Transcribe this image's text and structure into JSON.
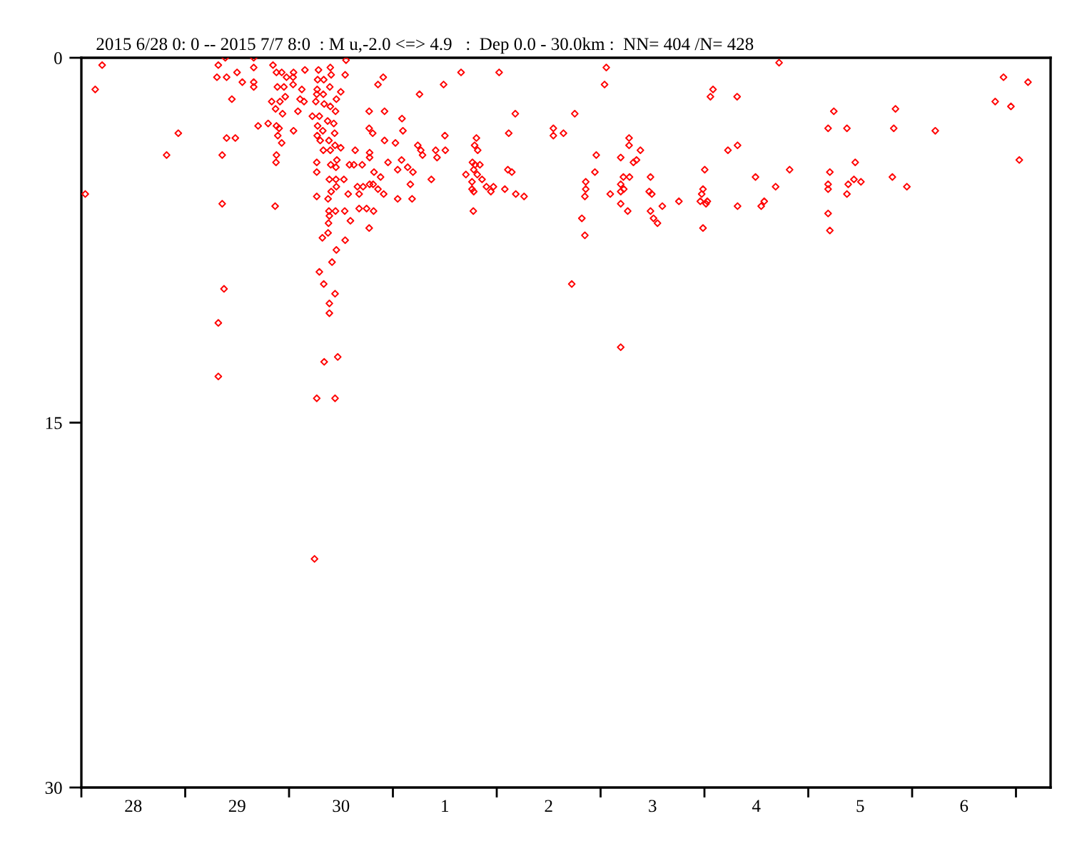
{
  "chart_data": {
    "type": "scatter",
    "title": "2015 6/28 0: 0 -- 2015 7/7 8:0  : M u,-2.0 <=> 4.9   :  Dep 0.0 - 30.0km :  NN= 404 /N= 428",
    "xlim": [
      "2015-06-28T00:00",
      "2015-07-07T08:00"
    ],
    "xticks": [
      {
        "value": "2015-06-28T00:00",
        "label": null
      },
      {
        "value": "2015-06-28T12:00",
        "label": "28"
      },
      {
        "value": "2015-06-29T00:00",
        "label": null
      },
      {
        "value": "2015-06-29T12:00",
        "label": "29"
      },
      {
        "value": "2015-06-30T00:00",
        "label": null
      },
      {
        "value": "2015-06-30T12:00",
        "label": "30"
      },
      {
        "value": "2015-07-01T00:00",
        "label": null
      },
      {
        "value": "2015-07-01T12:00",
        "label": "1"
      },
      {
        "value": "2015-07-02T00:00",
        "label": null
      },
      {
        "value": "2015-07-02T12:00",
        "label": "2"
      },
      {
        "value": "2015-07-03T00:00",
        "label": null
      },
      {
        "value": "2015-07-03T12:00",
        "label": "3"
      },
      {
        "value": "2015-07-04T00:00",
        "label": null
      },
      {
        "value": "2015-07-04T12:00",
        "label": "4"
      },
      {
        "value": "2015-07-05T00:00",
        "label": null
      },
      {
        "value": "2015-07-05T12:00",
        "label": "5"
      },
      {
        "value": "2015-07-06T00:00",
        "label": null
      },
      {
        "value": "2015-07-06T12:00",
        "label": "6"
      },
      {
        "value": "2015-07-07T00:00",
        "label": null
      }
    ],
    "ylim": [
      30,
      0
    ],
    "yticks": [
      0,
      15,
      30
    ],
    "marker": "diamond",
    "series": [
      {
        "color": "#ff0000",
        "x": [
          "2015-06-28T04:48",
          "2015-06-28T03:12",
          "2015-06-28T00:54",
          "2015-06-28T22:24",
          "2015-06-28T19:42",
          "2015-06-29T09:16",
          "2015-06-29T07:39",
          "2015-06-29T07:20",
          "2015-06-29T09:34",
          "2015-06-29T11:59",
          "2015-06-29T15:50",
          "2015-06-29T15:50",
          "2015-06-29T13:12",
          "2015-06-29T15:50",
          "2015-06-29T15:50",
          "2015-06-29T10:47",
          "2015-06-29T09:34",
          "2015-06-29T11:35",
          "2015-06-29T08:33",
          "2015-06-29T08:33",
          "2015-06-29T08:58",
          "2015-06-29T07:39",
          "2015-06-29T07:39",
          "2015-06-29T20:17",
          "2015-06-29T21:05",
          "2015-06-29T22:18",
          "2015-06-30T01:02",
          "2015-06-30T03:40",
          "2015-06-29T23:25",
          "2015-06-30T00:56",
          "2015-06-29T21:18",
          "2015-06-29T22:49",
          "2015-06-30T00:56",
          "2015-06-30T02:57",
          "2015-06-29T19:59",
          "2015-06-29T21:54",
          "2015-06-29T23:07",
          "2015-06-30T02:33",
          "2015-06-30T03:28",
          "2015-06-29T20:53",
          "2015-06-29T22:30",
          "2015-06-30T02:03",
          "2015-06-29T16:51",
          "2015-06-29T19:10",
          "2015-06-29T21:05",
          "2015-06-29T21:42",
          "2015-06-30T01:02",
          "2015-06-29T21:24",
          "2015-06-29T22:18",
          "2015-06-29T21:05",
          "2015-06-29T20:59",
          "2015-06-29T20:47",
          "2015-06-30T06:48",
          "2015-06-30T06:36",
          "2015-06-30T08:01",
          "2015-06-30T09:32",
          "2015-06-30T09:44",
          "2015-06-30T13:10",
          "2015-06-30T12:58",
          "2015-06-30T06:30",
          "2015-06-30T06:24",
          "2015-06-30T07:55",
          "2015-06-30T09:25",
          "2015-06-30T11:57",
          "2015-06-30T10:56",
          "2015-06-30T06:11",
          "2015-06-30T08:07",
          "2015-06-30T09:32",
          "2015-06-30T10:44",
          "2015-06-30T05:23",
          "2015-06-30T07:00",
          "2015-06-30T08:55",
          "2015-06-30T06:36",
          "2015-06-30T10:20",
          "2015-06-30T07:48",
          "2015-06-30T10:32",
          "2015-06-30T06:30",
          "2015-06-30T07:12",
          "2015-06-30T09:13",
          "2015-06-30T10:38",
          "2015-06-30T07:55",
          "2015-06-30T09:32",
          "2015-06-30T11:57",
          "2015-06-30T11:03",
          "2015-06-30T06:24",
          "2015-06-30T06:24",
          "2015-06-30T09:38",
          "2015-06-30T10:50",
          "2015-06-30T10:50",
          "2015-06-30T09:19",
          "2015-06-30T12:40",
          "2015-06-30T10:56",
          "2015-06-30T09:44",
          "2015-06-30T13:40",
          "2015-06-30T06:24",
          "2015-06-30T09:01",
          "2015-06-30T10:44",
          "2015-06-30T09:13",
          "2015-06-30T09:19",
          "2015-06-30T09:07",
          "2015-06-30T09:01",
          "2015-06-30T07:42",
          "2015-06-30T12:58",
          "2015-06-30T10:56",
          "2015-06-30T09:56",
          "2015-06-30T07:00",
          "2015-06-30T08:01",
          "2015-06-30T10:38",
          "2015-06-30T09:19",
          "2015-06-30T09:19",
          "2015-06-30T11:15",
          "2015-06-30T08:07",
          "2015-06-30T06:24",
          "2015-06-30T10:38",
          "2015-06-30T05:53",
          "2015-06-30T15:17",
          "2015-06-30T13:58",
          "2015-06-30T14:59",
          "2015-06-30T16:54",
          "2015-06-30T18:37",
          "2015-06-30T18:37",
          "2015-06-30T18:31",
          "2015-06-30T22:04",
          "2015-06-30T21:46",
          "2015-06-30T20:33",
          "2015-06-30T18:31",
          "2015-06-30T19:20",
          "2015-06-30T22:04",
          "2015-07-01T00:35",
          "2015-06-30T22:52",
          "2015-06-30T21:09",
          "2015-06-30T19:38",
          "2015-06-30T15:48",
          "2015-06-30T17:07",
          "2015-06-30T18:37",
          "2015-06-30T19:26",
          "2015-06-30T20:33",
          "2015-06-30T21:52",
          "2015-06-30T16:12",
          "2015-06-30T16:12",
          "2015-06-30T17:55",
          "2015-06-30T19:32",
          "2015-06-30T18:31",
          "2015-06-30T14:11",
          "2015-06-30T12:52",
          "2015-07-01T02:06",
          "2015-07-01T02:19",
          "2015-07-01T02:00",
          "2015-07-01T01:06",
          "2015-07-01T03:25",
          "2015-07-01T04:38",
          "2015-07-01T04:02",
          "2015-07-01T01:06",
          "2015-07-01T04:26",
          "2015-07-01T06:09",
          "2015-07-01T11:43",
          "2015-07-01T15:45",
          "2015-07-02T00:33",
          "2015-07-01T12:01",
          "2015-07-01T05:45",
          "2015-07-01T06:27",
          "2015-07-01T06:51",
          "2015-07-01T09:53",
          "2015-07-01T12:07",
          "2015-07-01T10:12",
          "2015-07-01T08:53",
          "2015-07-01T19:18",
          "2015-07-01T18:53",
          "2015-07-01T19:36",
          "2015-07-01T18:23",
          "2015-07-01T18:59",
          "2015-07-01T20:06",
          "2015-07-01T18:41",
          "2015-07-01T16:52",
          "2015-07-01T19:30",
          "2015-07-01T20:36",
          "2015-07-01T18:17",
          "2015-07-01T18:17",
          "2015-07-01T18:41",
          "2015-07-01T21:37",
          "2015-07-01T22:38",
          "2015-07-01T23:14",
          "2015-07-01T18:35",
          "2015-07-02T01:52",
          "2015-07-02T04:24",
          "2015-07-02T06:19",
          "2015-07-02T04:17",
          "2015-07-02T02:46",
          "2015-07-02T02:34",
          "2015-07-02T03:29",
          "2015-07-02T13:05",
          "2015-07-02T13:05",
          "2015-07-02T15:25",
          "2015-07-02T18:02",
          "2015-07-03T00:55",
          "2015-07-02T17:20",
          "2015-07-02T20:34",
          "2015-07-02T20:34",
          "2015-07-02T20:22",
          "2015-07-02T19:40",
          "2015-07-02T20:22",
          "2015-07-02T23:00",
          "2015-07-02T22:41",
          "2015-07-03T01:19",
          "2015-07-03T02:14",
          "2015-07-03T04:39",
          "2015-07-03T05:16",
          "2015-07-03T06:41",
          "2015-07-03T04:39",
          "2015-07-03T05:22",
          "2015-07-03T04:39",
          "2015-07-03T04:39",
          "2015-07-03T06:16",
          "2015-07-03T04:39",
          "2015-07-03T06:35",
          "2015-07-03T06:35",
          "2015-07-03T09:12",
          "2015-07-03T08:18",
          "2015-07-03T07:35",
          "2015-07-03T11:32",
          "2015-07-03T11:14",
          "2015-07-03T11:50",
          "2015-07-03T11:32",
          "2015-07-03T12:14",
          "2015-07-03T13:09",
          "2015-07-03T14:16",
          "2015-07-03T18:06",
          "2015-07-04T00:04",
          "2015-07-03T23:40",
          "2015-07-03T23:22",
          "2015-07-03T23:03",
          "2015-07-04T00:40",
          "2015-07-04T00:22",
          "2015-07-03T23:40",
          "2015-07-04T01:23",
          "2015-07-04T01:59",
          "2015-07-04T07:33",
          "2015-07-04T05:26",
          "2015-07-04T07:39",
          "2015-07-04T07:39",
          "2015-07-04T17:15",
          "2015-07-04T13:07",
          "2015-07-04T13:49",
          "2015-07-04T11:48",
          "2015-07-04T16:27",
          "2015-07-04T19:41",
          "2015-07-05T05:54",
          "2015-07-05T04:35",
          "2015-07-05T08:56",
          "2015-07-05T04:59",
          "2015-07-05T04:35",
          "2015-07-05T04:35",
          "2015-07-05T04:35",
          "2015-07-05T04:59",
          "2015-07-05T10:51",
          "2015-07-05T10:33",
          "2015-07-05T12:10",
          "2015-07-05T09:14",
          "2015-07-05T08:56",
          "2015-07-05T20:09",
          "2015-07-05T19:45",
          "2015-07-05T19:26",
          "2015-07-05T22:47",
          "2015-07-06T05:21",
          "2015-07-06T21:07",
          "2015-07-06T19:12",
          "2015-07-06T22:50",
          "2015-07-07T00:46",
          "2015-07-07T02:47"
        ],
        "values": [
          0.3,
          1.3,
          5.6,
          3.1,
          4.0,
          0.0,
          0.3,
          0.8,
          0.8,
          0.6,
          0.0,
          0.4,
          1.0,
          1.0,
          1.2,
          1.7,
          3.3,
          3.3,
          4.0,
          6.0,
          9.5,
          10.9,
          13.1,
          0.3,
          0.6,
          0.6,
          0.6,
          0.5,
          0.8,
          0.8,
          1.2,
          1.2,
          1.1,
          1.3,
          1.8,
          1.8,
          1.6,
          1.7,
          1.8,
          2.1,
          2.3,
          2.2,
          2.8,
          2.7,
          2.8,
          2.9,
          3.0,
          3.2,
          3.5,
          4.0,
          4.3,
          6.1,
          0.5,
          0.9,
          0.9,
          0.4,
          0.7,
          0.1,
          0.7,
          1.3,
          1.5,
          1.5,
          1.2,
          1.4,
          1.7,
          1.8,
          1.9,
          2.0,
          2.2,
          2.4,
          2.4,
          2.6,
          2.8,
          2.7,
          3.0,
          3.1,
          3.2,
          3.4,
          3.4,
          3.6,
          3.8,
          3.8,
          3.7,
          4.2,
          4.3,
          4.7,
          4.4,
          4.5,
          5.0,
          5.0,
          5.0,
          5.3,
          5.5,
          5.6,
          5.7,
          5.8,
          6.3,
          6.3,
          6.5,
          6.8,
          7.2,
          7.4,
          7.5,
          7.9,
          8.4,
          8.8,
          9.3,
          9.7,
          10.1,
          10.5,
          12.3,
          12.5,
          14.0,
          14.0,
          20.6,
          3.8,
          4.4,
          4.4,
          4.4,
          3.9,
          4.1,
          2.2,
          2.2,
          0.8,
          1.1,
          2.9,
          3.1,
          3.4,
          3.5,
          4.3,
          4.9,
          4.7,
          5.3,
          5.3,
          5.2,
          5.2,
          5.4,
          5.6,
          5.6,
          6.2,
          6.2,
          6.3,
          7.0,
          6.7,
          6.3,
          2.5,
          3.0,
          4.2,
          4.6,
          4.5,
          4.7,
          5.2,
          5.8,
          5.8,
          1.5,
          1.1,
          0.6,
          0.6,
          3.2,
          3.6,
          3.8,
          4.0,
          3.8,
          3.8,
          4.1,
          5.0,
          3.3,
          3.6,
          3.8,
          4.3,
          4.4,
          4.4,
          4.6,
          4.8,
          4.8,
          5.0,
          5.1,
          5.4,
          5.5,
          5.3,
          5.5,
          5.3,
          6.3,
          5.4,
          5.6,
          5.7,
          2.3,
          3.1,
          4.6,
          4.7,
          2.9,
          3.2,
          3.1,
          2.3,
          1.1,
          9.3,
          5.1,
          5.4,
          5.7,
          6.6,
          7.3,
          4.0,
          4.7,
          0.4,
          5.6,
          4.1,
          4.9,
          4.9,
          5.2,
          5.4,
          5.5,
          6.0,
          6.3,
          11.9,
          3.3,
          3.6,
          3.8,
          4.2,
          4.3,
          4.9,
          5.5,
          5.6,
          6.3,
          6.6,
          6.8,
          6.1,
          5.9,
          4.6,
          5.4,
          5.6,
          5.9,
          5.9,
          6.0,
          7.0,
          1.6,
          1.3,
          1.6,
          3.8,
          3.6,
          6.1,
          0.2,
          6.1,
          5.9,
          4.9,
          5.3,
          4.6,
          2.2,
          2.9,
          2.9,
          4.7,
          5.2,
          5.4,
          6.4,
          7.1,
          4.3,
          5.0,
          5.1,
          5.2,
          5.6,
          2.1,
          2.9,
          4.9,
          5.3,
          3.0,
          0.8,
          1.8,
          2.0,
          4.2,
          1.0
        ]
      }
    ]
  }
}
